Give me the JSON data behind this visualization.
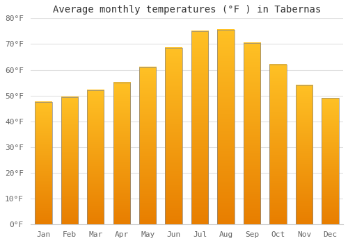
{
  "title": "Average monthly temperatures (°F ) in Tabernas",
  "months": [
    "Jan",
    "Feb",
    "Mar",
    "Apr",
    "May",
    "Jun",
    "Jul",
    "Aug",
    "Sep",
    "Oct",
    "Nov",
    "Dec"
  ],
  "values": [
    47.5,
    49.5,
    52.0,
    55.0,
    61.0,
    68.5,
    75.0,
    75.5,
    70.5,
    62.0,
    54.0,
    49.0
  ],
  "bar_color_top": "#FFC125",
  "bar_color_bottom": "#E87E00",
  "bar_edge_color": "#888888",
  "background_color": "#ffffff",
  "grid_color": "#e0e0e0",
  "ylim": [
    0,
    80
  ],
  "yticks": [
    0,
    10,
    20,
    30,
    40,
    50,
    60,
    70,
    80
  ],
  "title_fontsize": 10,
  "tick_fontsize": 8,
  "bar_width": 0.65
}
